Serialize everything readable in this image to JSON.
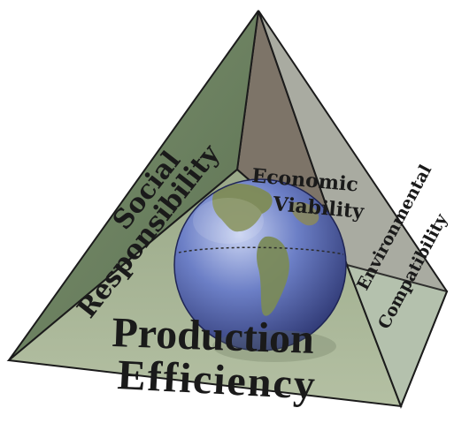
{
  "faces": {
    "left": {
      "label": [
        "Social",
        "Responsibility"
      ]
    },
    "back": {
      "label": [
        "Economic",
        "Viability"
      ]
    },
    "right": {
      "label": [
        "Environmental",
        "Compatibility"
      ]
    },
    "front": {
      "label": [
        "Production",
        "Efficiency"
      ]
    }
  },
  "colors": {
    "left_face": "#6f8563",
    "back_face": "#7d7468",
    "right_face": "#a9aba1",
    "front_face": "#a7b496",
    "front_right_tint": "#b6c6b0",
    "edge": "#1b1b1b",
    "label": "#1a1a1a",
    "globe_ocean": "#5a6fb8",
    "globe_land": "#7a8a5a"
  },
  "icons": {
    "center": "globe-icon"
  }
}
